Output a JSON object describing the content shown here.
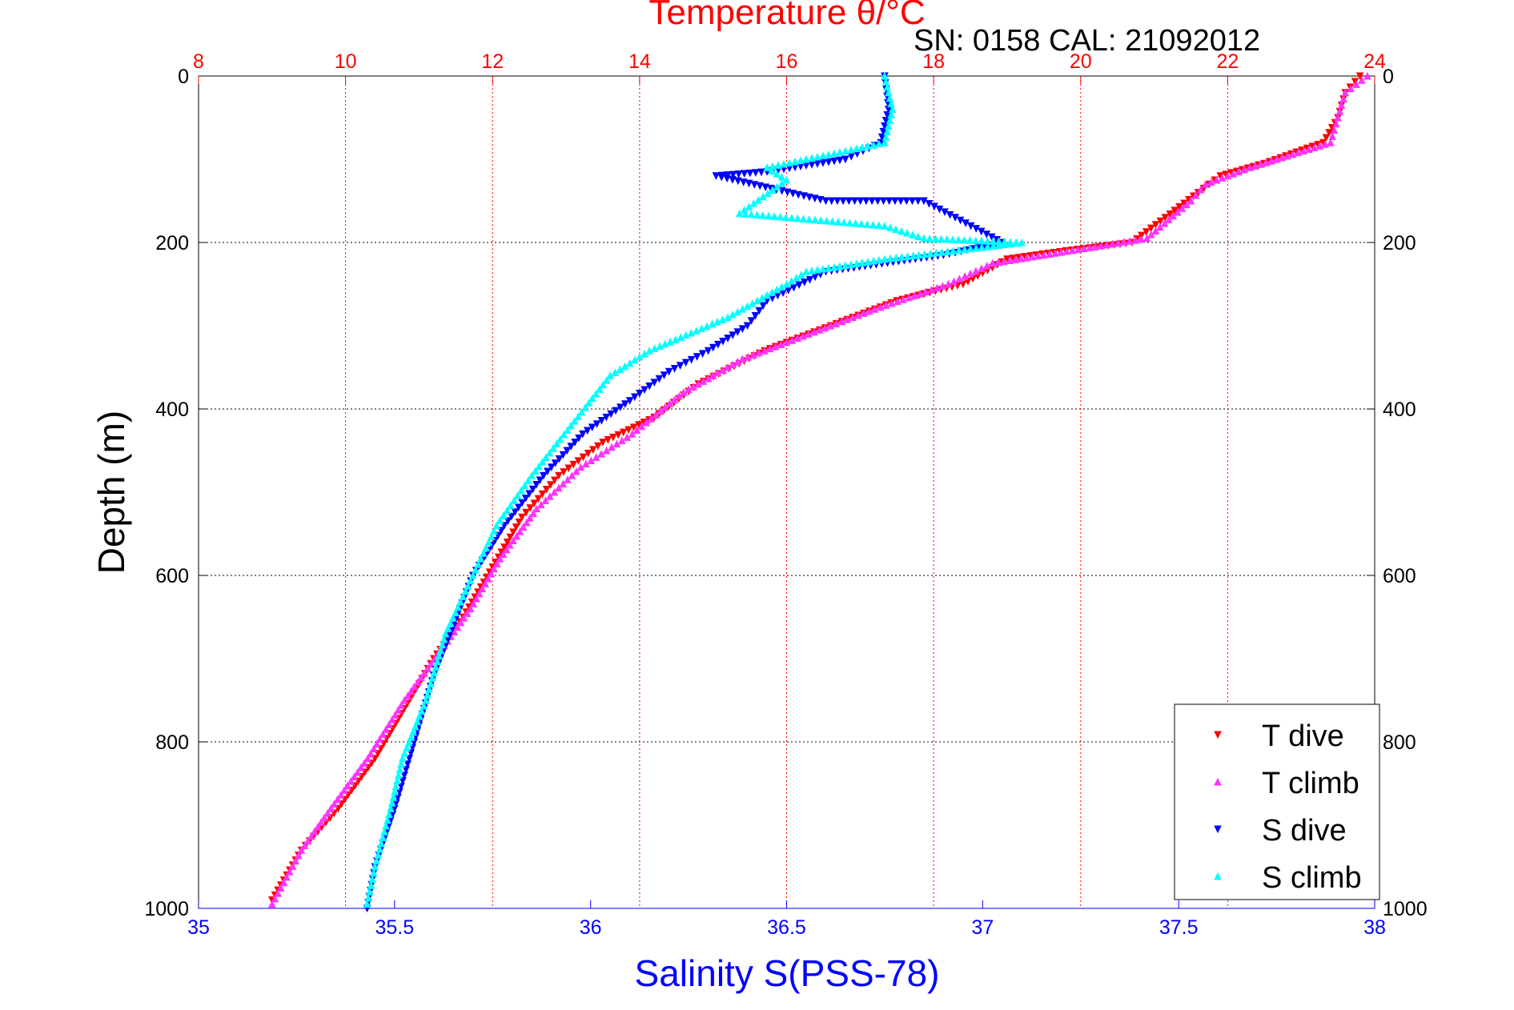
{
  "chart_data": {
    "type": "scatter",
    "title": "Temperature θ/°C",
    "subtitle": "SN: 0158  CAL: 21092012",
    "ylabel": "Depth (m)",
    "xlabel": "Salinity S(PSS-78)",
    "y_axis": {
      "range": [
        0,
        1000
      ],
      "reversed": true,
      "ticks": [
        0,
        200,
        400,
        600,
        800,
        1000
      ]
    },
    "x_axis_bottom": {
      "label": "Salinity S(PSS-78)",
      "range": [
        35,
        38
      ],
      "ticks": [
        35,
        35.5,
        36,
        36.5,
        37,
        37.5,
        38
      ],
      "color": "#0000ff"
    },
    "x_axis_top": {
      "label": "Temperature θ/°C",
      "range": [
        8,
        24
      ],
      "ticks": [
        8,
        10,
        12,
        14,
        16,
        18,
        20,
        22,
        24
      ],
      "color": "#ff0000"
    },
    "grid": true,
    "legend_position": "bottom-right",
    "series": [
      {
        "name": "T dive",
        "axis": "temperature",
        "color": "#ff0000",
        "marker": "triangle-down",
        "points": [
          [
            23.8,
            0
          ],
          [
            23.6,
            20
          ],
          [
            23.5,
            50
          ],
          [
            23.3,
            80
          ],
          [
            22.5,
            105
          ],
          [
            21.9,
            120
          ],
          [
            21.6,
            140
          ],
          [
            20.7,
            200
          ],
          [
            19.8,
            210
          ],
          [
            19.0,
            220
          ],
          [
            18.4,
            250
          ],
          [
            17.5,
            270
          ],
          [
            16.6,
            300
          ],
          [
            15.7,
            330
          ],
          [
            14.8,
            370
          ],
          [
            14.2,
            410
          ],
          [
            13.5,
            440
          ],
          [
            12.9,
            480
          ],
          [
            12.4,
            530
          ],
          [
            12.0,
            590
          ],
          [
            11.6,
            650
          ],
          [
            11.2,
            700
          ],
          [
            10.8,
            760
          ],
          [
            10.4,
            820
          ],
          [
            9.9,
            880
          ],
          [
            9.4,
            930
          ],
          [
            9.0,
            990
          ]
        ]
      },
      {
        "name": "T climb",
        "axis": "temperature",
        "color": "#ff33ff",
        "marker": "triangle-up",
        "points": [
          [
            23.9,
            0
          ],
          [
            23.6,
            20
          ],
          [
            23.5,
            50
          ],
          [
            23.4,
            80
          ],
          [
            22.3,
            110
          ],
          [
            21.7,
            130
          ],
          [
            21.5,
            150
          ],
          [
            20.9,
            195
          ],
          [
            19.5,
            215
          ],
          [
            18.8,
            225
          ],
          [
            18.2,
            250
          ],
          [
            17.2,
            280
          ],
          [
            16.3,
            310
          ],
          [
            15.4,
            340
          ],
          [
            14.6,
            380
          ],
          [
            13.9,
            430
          ],
          [
            13.2,
            470
          ],
          [
            12.6,
            520
          ],
          [
            12.1,
            580
          ],
          [
            11.7,
            640
          ],
          [
            11.3,
            690
          ],
          [
            10.8,
            750
          ],
          [
            10.3,
            820
          ],
          [
            9.8,
            880
          ],
          [
            9.4,
            930
          ],
          [
            9.0,
            995
          ]
        ]
      },
      {
        "name": "S dive",
        "axis": "salinity",
        "color": "#0000ff",
        "marker": "triangle-down",
        "points": [
          [
            36.75,
            0
          ],
          [
            36.76,
            40
          ],
          [
            36.74,
            80
          ],
          [
            36.65,
            100
          ],
          [
            36.45,
            115
          ],
          [
            36.32,
            120
          ],
          [
            36.6,
            150
          ],
          [
            36.85,
            150
          ],
          [
            37.05,
            200
          ],
          [
            36.9,
            215
          ],
          [
            36.6,
            235
          ],
          [
            36.45,
            270
          ],
          [
            36.4,
            300
          ],
          [
            36.3,
            330
          ],
          [
            36.2,
            355
          ],
          [
            36.1,
            390
          ],
          [
            35.98,
            430
          ],
          [
            35.88,
            480
          ],
          [
            35.78,
            540
          ],
          [
            35.7,
            600
          ],
          [
            35.65,
            660
          ],
          [
            35.6,
            720
          ],
          [
            35.55,
            800
          ],
          [
            35.5,
            880
          ],
          [
            35.45,
            950
          ],
          [
            35.43,
            1000
          ]
        ]
      },
      {
        "name": "S climb",
        "axis": "salinity",
        "color": "#00ffff",
        "marker": "triangle-up",
        "points": [
          [
            36.75,
            0
          ],
          [
            36.77,
            40
          ],
          [
            36.75,
            80
          ],
          [
            36.55,
            100
          ],
          [
            36.45,
            110
          ],
          [
            36.5,
            125
          ],
          [
            36.38,
            165
          ],
          [
            36.75,
            180
          ],
          [
            36.85,
            195
          ],
          [
            37.1,
            200
          ],
          [
            36.75,
            220
          ],
          [
            36.55,
            235
          ],
          [
            36.5,
            250
          ],
          [
            36.35,
            290
          ],
          [
            36.15,
            330
          ],
          [
            36.05,
            360
          ],
          [
            35.95,
            420
          ],
          [
            35.85,
            480
          ],
          [
            35.76,
            540
          ],
          [
            35.7,
            600
          ],
          [
            35.63,
            670
          ],
          [
            35.58,
            750
          ],
          [
            35.52,
            820
          ],
          [
            35.49,
            880
          ],
          [
            35.45,
            950
          ],
          [
            35.43,
            995
          ]
        ]
      }
    ]
  }
}
